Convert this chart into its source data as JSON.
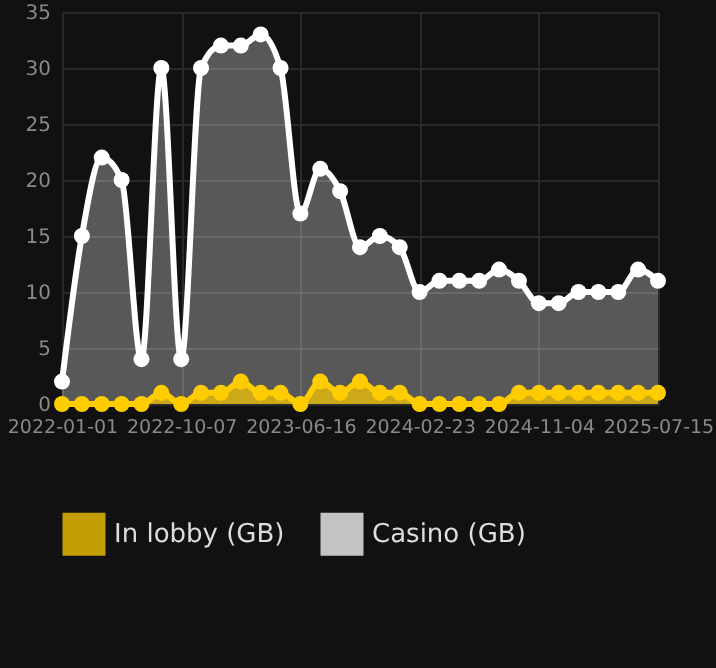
{
  "chart_data": {
    "type": "area",
    "categories": [
      "2022-01-01",
      null,
      null,
      null,
      null,
      null,
      "2022-10-07",
      null,
      null,
      null,
      null,
      null,
      "2023-06-16",
      null,
      null,
      null,
      null,
      null,
      "2024-02-23",
      null,
      null,
      null,
      null,
      null,
      "2024-11-04",
      null,
      null,
      null,
      null,
      null,
      "2025-07-15"
    ],
    "series": [
      {
        "name": "In lobby (GB)",
        "color": "#ffcc00",
        "values": [
          0,
          0,
          0,
          0,
          0,
          1,
          0,
          1,
          1,
          2,
          1,
          1,
          0,
          2,
          1,
          2,
          1,
          1,
          0,
          0,
          0,
          0,
          0,
          1,
          1,
          1,
          1,
          1,
          1,
          1,
          1
        ]
      },
      {
        "name": "Casino (GB)",
        "color": "#ffffff",
        "values": [
          2,
          15,
          22,
          20,
          4,
          30,
          4,
          30,
          32,
          32,
          33,
          30,
          17,
          21,
          19,
          14,
          15,
          14,
          10,
          11,
          11,
          11,
          12,
          11,
          9,
          9,
          10,
          10,
          10,
          12,
          11
        ]
      }
    ],
    "ylim": [
      0,
      35
    ],
    "yticks": [
      0,
      5,
      10,
      15,
      20,
      25,
      30,
      35
    ],
    "grid": true,
    "legend": "bottom",
    "marker": "circle"
  }
}
